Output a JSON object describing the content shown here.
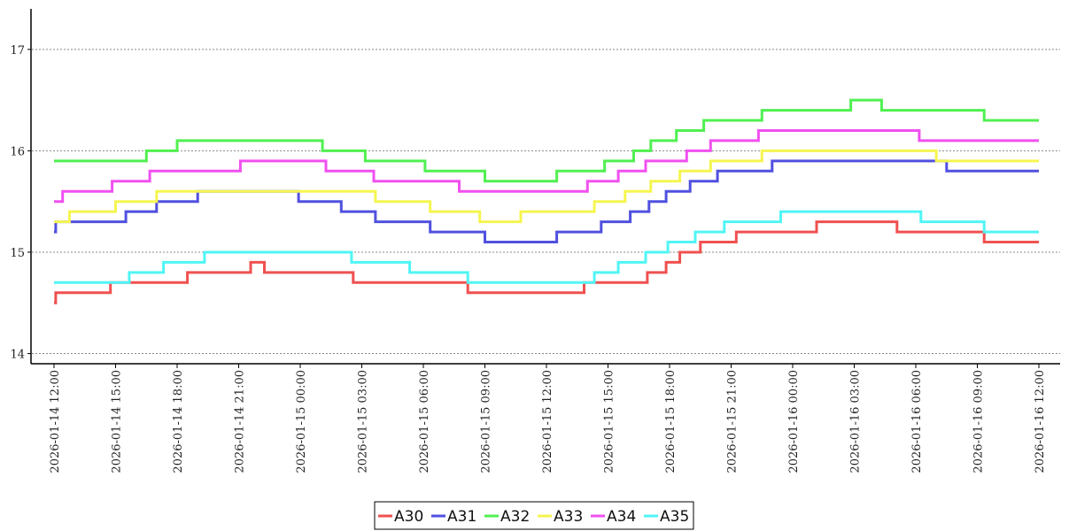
{
  "chart_data": {
    "type": "line",
    "step": true,
    "title": "",
    "xlabel": "",
    "ylabel": "",
    "ylim": [
      13.9,
      17.4
    ],
    "xlim": [
      "2026-01-14 12:00",
      "2026-01-16 12:00"
    ],
    "grid": {
      "y": true,
      "x": false,
      "style": "dotted"
    },
    "legend_position": "bottom-center",
    "yticks": [
      14,
      15,
      16,
      17
    ],
    "xticks": [
      "2026-01-14 12:00",
      "2026-01-14 15:00",
      "2026-01-14 18:00",
      "2026-01-14 21:00",
      "2026-01-15 00:00",
      "2026-01-15 03:00",
      "2026-01-15 06:00",
      "2026-01-15 09:00",
      "2026-01-15 12:00",
      "2026-01-15 15:00",
      "2026-01-15 18:00",
      "2026-01-15 21:00",
      "2026-01-16 00:00",
      "2026-01-16 03:00",
      "2026-01-16 06:00",
      "2026-01-16 09:00",
      "2026-01-16 12:00"
    ],
    "series": [
      {
        "name": "A30",
        "color": "#f05050",
        "points": [
          [
            "2026-01-14 12:00",
            14.5
          ],
          [
            "2026-01-14 12:05",
            14.6
          ],
          [
            "2026-01-14 14:45",
            14.7
          ],
          [
            "2026-01-14 18:30",
            14.8
          ],
          [
            "2026-01-14 21:35",
            14.9
          ],
          [
            "2026-01-14 22:15",
            14.8
          ],
          [
            "2026-01-15 02:35",
            14.7
          ],
          [
            "2026-01-15 08:10",
            14.6
          ],
          [
            "2026-01-15 13:50",
            14.7
          ],
          [
            "2026-01-15 16:55",
            14.8
          ],
          [
            "2026-01-15 17:50",
            14.9
          ],
          [
            "2026-01-15 18:30",
            15.0
          ],
          [
            "2026-01-15 19:30",
            15.1
          ],
          [
            "2026-01-15 21:15",
            15.2
          ],
          [
            "2026-01-16 01:10",
            15.3
          ],
          [
            "2026-01-16 05:05",
            15.2
          ],
          [
            "2026-01-16 09:20",
            15.1
          ],
          [
            "2026-01-16 12:00",
            15.1
          ]
        ]
      },
      {
        "name": "A31",
        "color": "#5050e0",
        "points": [
          [
            "2026-01-14 12:00",
            15.2
          ],
          [
            "2026-01-14 12:05",
            15.3
          ],
          [
            "2026-01-14 15:30",
            15.4
          ],
          [
            "2026-01-14 17:00",
            15.5
          ],
          [
            "2026-01-14 19:00",
            15.6
          ],
          [
            "2026-01-14 23:55",
            15.5
          ],
          [
            "2026-01-15 02:00",
            15.4
          ],
          [
            "2026-01-15 03:40",
            15.3
          ],
          [
            "2026-01-15 06:20",
            15.2
          ],
          [
            "2026-01-15 09:00",
            15.1
          ],
          [
            "2026-01-15 12:30",
            15.2
          ],
          [
            "2026-01-15 14:40",
            15.3
          ],
          [
            "2026-01-15 16:05",
            15.4
          ],
          [
            "2026-01-15 17:00",
            15.5
          ],
          [
            "2026-01-15 17:50",
            15.6
          ],
          [
            "2026-01-15 19:00",
            15.7
          ],
          [
            "2026-01-15 20:20",
            15.8
          ],
          [
            "2026-01-15 23:00",
            15.9
          ],
          [
            "2026-01-16 07:30",
            15.8
          ],
          [
            "2026-01-16 12:00",
            15.8
          ]
        ]
      },
      {
        "name": "A32",
        "color": "#50f050",
        "points": [
          [
            "2026-01-14 12:00",
            15.9
          ],
          [
            "2026-01-14 16:30",
            16.0
          ],
          [
            "2026-01-14 18:00",
            16.1
          ],
          [
            "2026-01-15 01:05",
            16.0
          ],
          [
            "2026-01-15 03:10",
            15.9
          ],
          [
            "2026-01-15 06:05",
            15.8
          ],
          [
            "2026-01-15 09:00",
            15.7
          ],
          [
            "2026-01-15 12:30",
            15.8
          ],
          [
            "2026-01-15 14:50",
            15.9
          ],
          [
            "2026-01-15 16:15",
            16.0
          ],
          [
            "2026-01-15 17:05",
            16.1
          ],
          [
            "2026-01-15 18:20",
            16.2
          ],
          [
            "2026-01-15 19:40",
            16.3
          ],
          [
            "2026-01-15 22:30",
            16.4
          ],
          [
            "2026-01-16 02:50",
            16.5
          ],
          [
            "2026-01-16 04:20",
            16.4
          ],
          [
            "2026-01-16 09:20",
            16.3
          ],
          [
            "2026-01-16 12:00",
            16.3
          ]
        ]
      },
      {
        "name": "A33",
        "color": "#f5f550",
        "points": [
          [
            "2026-01-14 12:00",
            15.3
          ],
          [
            "2026-01-14 12:45",
            15.4
          ],
          [
            "2026-01-14 15:00",
            15.5
          ],
          [
            "2026-01-14 17:00",
            15.6
          ],
          [
            "2026-01-15 03:40",
            15.5
          ],
          [
            "2026-01-15 06:20",
            15.4
          ],
          [
            "2026-01-15 08:45",
            15.3
          ],
          [
            "2026-01-15 10:45",
            15.4
          ],
          [
            "2026-01-15 14:20",
            15.5
          ],
          [
            "2026-01-15 15:50",
            15.6
          ],
          [
            "2026-01-15 17:05",
            15.7
          ],
          [
            "2026-01-15 18:30",
            15.8
          ],
          [
            "2026-01-15 20:00",
            15.9
          ],
          [
            "2026-01-15 22:30",
            16.0
          ],
          [
            "2026-01-16 07:00",
            15.9
          ],
          [
            "2026-01-16 12:00",
            15.9
          ]
        ]
      },
      {
        "name": "A34",
        "color": "#f050f0",
        "points": [
          [
            "2026-01-14 12:00",
            15.5
          ],
          [
            "2026-01-14 12:25",
            15.6
          ],
          [
            "2026-01-14 14:50",
            15.7
          ],
          [
            "2026-01-14 16:40",
            15.8
          ],
          [
            "2026-01-14 21:05",
            15.9
          ],
          [
            "2026-01-15 01:15",
            15.8
          ],
          [
            "2026-01-15 03:35",
            15.7
          ],
          [
            "2026-01-15 07:45",
            15.6
          ],
          [
            "2026-01-15 14:00",
            15.7
          ],
          [
            "2026-01-15 15:30",
            15.8
          ],
          [
            "2026-01-15 16:50",
            15.9
          ],
          [
            "2026-01-15 18:50",
            16.0
          ],
          [
            "2026-01-15 20:00",
            16.1
          ],
          [
            "2026-01-15 22:20",
            16.2
          ],
          [
            "2026-01-16 06:10",
            16.1
          ],
          [
            "2026-01-16 12:00",
            16.1
          ]
        ]
      },
      {
        "name": "A35",
        "color": "#50f5f5",
        "points": [
          [
            "2026-01-14 12:00",
            14.7
          ],
          [
            "2026-01-14 15:40",
            14.8
          ],
          [
            "2026-01-14 17:20",
            14.9
          ],
          [
            "2026-01-14 19:20",
            15.0
          ],
          [
            "2026-01-15 02:30",
            14.9
          ],
          [
            "2026-01-15 05:20",
            14.8
          ],
          [
            "2026-01-15 08:10",
            14.7
          ],
          [
            "2026-01-15 14:20",
            14.8
          ],
          [
            "2026-01-15 15:30",
            14.9
          ],
          [
            "2026-01-15 16:50",
            15.0
          ],
          [
            "2026-01-15 17:55",
            15.1
          ],
          [
            "2026-01-15 19:15",
            15.2
          ],
          [
            "2026-01-15 20:40",
            15.3
          ],
          [
            "2026-01-15 23:25",
            15.4
          ],
          [
            "2026-01-16 06:15",
            15.3
          ],
          [
            "2026-01-16 09:20",
            15.2
          ],
          [
            "2026-01-16 12:00",
            15.2
          ]
        ]
      }
    ]
  }
}
